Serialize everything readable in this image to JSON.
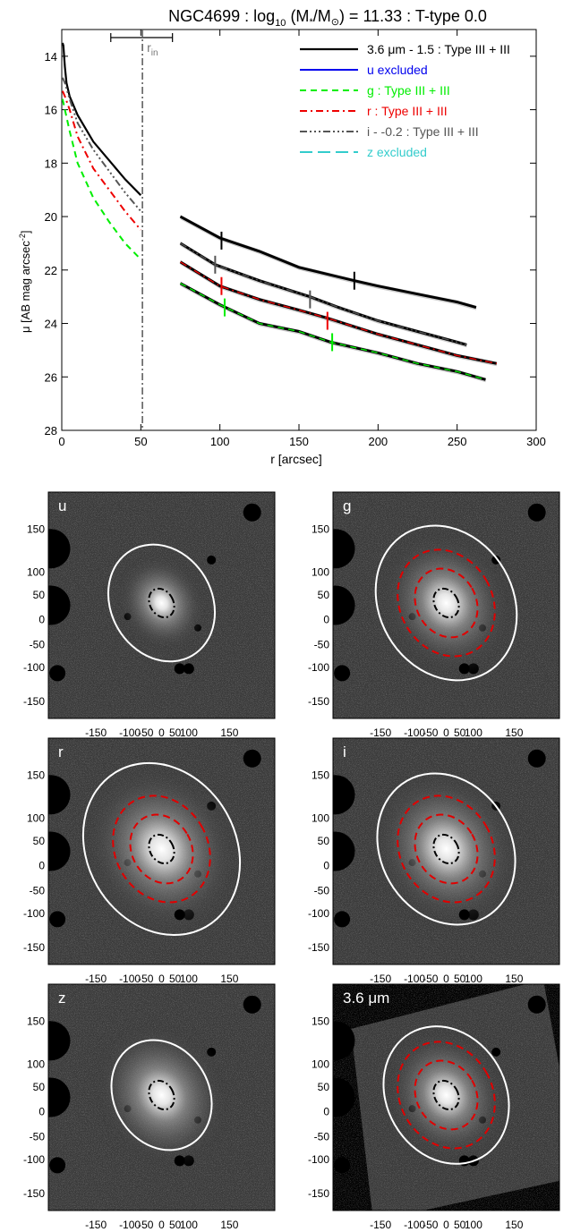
{
  "profile": {
    "title_parts": [
      "NGC4699 : log",
      "10",
      " (M",
      "*",
      "/M",
      "⊙",
      ") = 11.33 : T-type 0.0"
    ],
    "xlabel": "r [arcsec]",
    "ylabel_parts": [
      "μ [AB mag arcsec",
      "-2",
      "]"
    ],
    "rin_label_parts": [
      "r",
      "in"
    ],
    "xticks": [
      "0",
      "50",
      "100",
      "150",
      "200",
      "250",
      "300"
    ],
    "yticks": [
      "14",
      "16",
      "18",
      "20",
      "22",
      "24",
      "26",
      "28"
    ]
  },
  "chart_data": {
    "type": "line",
    "x": "r",
    "xlim": [
      0,
      300
    ],
    "ylim": [
      28,
      13
    ],
    "grid": false,
    "legend_position": "top-right",
    "r_in": 51,
    "r_in_range": [
      31,
      70
    ],
    "series": [
      {
        "name": "3.6 μm - 1.5 : Type III + III",
        "label_color": "#000000",
        "color": "#000000",
        "dash": "solid",
        "width": 2.2,
        "points": [
          [
            0.5,
            13.5
          ],
          [
            1,
            13.6
          ],
          [
            2,
            14.4
          ],
          [
            3,
            15.0
          ],
          [
            5,
            15.5
          ],
          [
            10,
            16.2
          ],
          [
            20,
            17.2
          ],
          [
            30,
            17.9
          ],
          [
            40,
            18.6
          ],
          [
            50,
            19.2
          ],
          [
            75,
            20.0
          ],
          [
            100,
            20.8
          ],
          [
            125,
            21.3
          ],
          [
            150,
            21.9
          ],
          [
            185,
            22.4
          ],
          [
            200,
            22.6
          ],
          [
            225,
            22.9
          ],
          [
            250,
            23.2
          ],
          [
            262,
            23.4
          ]
        ],
        "breaks": [
          [
            101,
            20.9
          ],
          [
            185,
            22.4
          ]
        ]
      },
      {
        "name": "u excluded",
        "label_color": "#0000ee",
        "color": "#0000ee",
        "dash": "solid",
        "width": 2,
        "points": []
      },
      {
        "name": "g : Type III + III",
        "label_color": "#00ee00",
        "color": "#00ee00",
        "dash": "7,5",
        "width": 2,
        "points": [
          [
            0.5,
            15.6
          ],
          [
            2,
            16.0
          ],
          [
            5,
            16.8
          ],
          [
            10,
            18.0
          ],
          [
            20,
            19.3
          ],
          [
            30,
            20.2
          ],
          [
            40,
            21.0
          ],
          [
            50,
            21.6
          ],
          [
            75,
            22.5
          ],
          [
            100,
            23.3
          ],
          [
            125,
            24.0
          ],
          [
            150,
            24.3
          ],
          [
            170,
            24.7
          ],
          [
            200,
            25.1
          ],
          [
            225,
            25.5
          ],
          [
            250,
            25.8
          ],
          [
            268,
            26.1
          ]
        ],
        "breaks": [
          [
            103,
            23.4
          ],
          [
            171,
            24.7
          ]
        ]
      },
      {
        "name": "r : Type III + III",
        "label_color": "#ee0000",
        "color": "#ee0000",
        "dash": "8,4,2,4",
        "width": 2,
        "points": [
          [
            0.5,
            15.3
          ],
          [
            2,
            15.5
          ],
          [
            5,
            16.0
          ],
          [
            10,
            17.0
          ],
          [
            20,
            18.2
          ],
          [
            30,
            19.0
          ],
          [
            40,
            19.8
          ],
          [
            50,
            20.5
          ],
          [
            75,
            21.7
          ],
          [
            100,
            22.6
          ],
          [
            125,
            23.1
          ],
          [
            150,
            23.5
          ],
          [
            168,
            23.8
          ],
          [
            200,
            24.4
          ],
          [
            225,
            24.8
          ],
          [
            250,
            25.2
          ],
          [
            275,
            25.5
          ]
        ],
        "breaks": [
          [
            101,
            22.6
          ],
          [
            168,
            23.9
          ]
        ]
      },
      {
        "name": "i - -0.2 : Type III + III",
        "label_color": "#555555",
        "color": "#555555",
        "dash": "8,3,2,3,2,3,2,3",
        "width": 2,
        "points": [
          [
            0.5,
            14.8
          ],
          [
            2,
            15.0
          ],
          [
            5,
            15.6
          ],
          [
            10,
            16.5
          ],
          [
            20,
            17.5
          ],
          [
            30,
            18.3
          ],
          [
            40,
            19.1
          ],
          [
            50,
            19.8
          ],
          [
            75,
            21.0
          ],
          [
            97,
            21.8
          ],
          [
            125,
            22.4
          ],
          [
            157,
            23.0
          ],
          [
            175,
            23.4
          ],
          [
            200,
            23.9
          ],
          [
            225,
            24.3
          ],
          [
            250,
            24.7
          ],
          [
            256,
            24.8
          ]
        ],
        "breaks": [
          [
            97,
            21.8
          ],
          [
            157,
            23.1
          ]
        ]
      },
      {
        "name": "z excluded",
        "label_color": "#33cccc",
        "color": "#33cccc",
        "dash": "14,6",
        "width": 2,
        "points": []
      }
    ]
  },
  "panels": [
    {
      "id": "u",
      "label": "u",
      "tint": "#ffffff",
      "glow": 0.55,
      "fov": "full",
      "outer": [
        68,
        0.83
      ],
      "inner": [],
      "core": true,
      "yticks": [
        "150",
        "100",
        "50",
        "0",
        "-50",
        "-100",
        "-150"
      ],
      "xticks": [
        "-150",
        "-100",
        "-50",
        "0",
        "50",
        "100",
        "150"
      ]
    },
    {
      "id": "g",
      "label": "g",
      "tint": "#ffffff",
      "glow": 0.8,
      "fov": "full",
      "outer": [
        90,
        0.83
      ],
      "inner": [
        62,
        40
      ],
      "core": true,
      "yticks": [
        "150",
        "100",
        "50",
        "0",
        "-50",
        "-100",
        "-150"
      ],
      "xticks": [
        "-150",
        "-100",
        "-50",
        "0",
        "50",
        "100",
        "150"
      ]
    },
    {
      "id": "r",
      "label": "r",
      "tint": "#ffffff",
      "glow": 0.95,
      "fov": "full",
      "outer": [
        100,
        0.83
      ],
      "inner": [
        62,
        40
      ],
      "core": true,
      "yticks": [
        "150",
        "100",
        "50",
        "0",
        "-50",
        "-100",
        "-150"
      ],
      "xticks": [
        "-150",
        "-100",
        "-50",
        "0",
        "50",
        "100",
        "150"
      ]
    },
    {
      "id": "i",
      "label": "i",
      "tint": "#ffffff",
      "glow": 0.9,
      "fov": "full",
      "outer": [
        88,
        0.83
      ],
      "inner": [
        62,
        40
      ],
      "core": true,
      "yticks": [
        "150",
        "100",
        "50",
        "0",
        "-50",
        "-100",
        "-150"
      ],
      "xticks": [
        "-150",
        "-100",
        "-50",
        "0",
        "50",
        "100",
        "150"
      ]
    },
    {
      "id": "z",
      "label": "z",
      "tint": "#ffffff",
      "glow": 0.8,
      "fov": "full",
      "outer": [
        64,
        0.83
      ],
      "inner": [],
      "core": true,
      "yticks": [
        "150",
        "100",
        "50",
        "0",
        "-50",
        "-100",
        "-150"
      ],
      "xticks": [
        "-150",
        "-100",
        "-50",
        "0",
        "50",
        "100",
        "150"
      ]
    },
    {
      "id": "irac",
      "label": "3.6 μm",
      "tint": "#ffffff",
      "glow": 0.75,
      "fov": "tilted",
      "outer": [
        80,
        0.83
      ],
      "inner": [
        62,
        40
      ],
      "core": true,
      "yticks": [
        "150",
        "100",
        "50",
        "0",
        "-50",
        "-100",
        "-150"
      ],
      "xticks": [
        "-150",
        "-100",
        "-50",
        "0",
        "50",
        "100",
        "150"
      ]
    }
  ]
}
